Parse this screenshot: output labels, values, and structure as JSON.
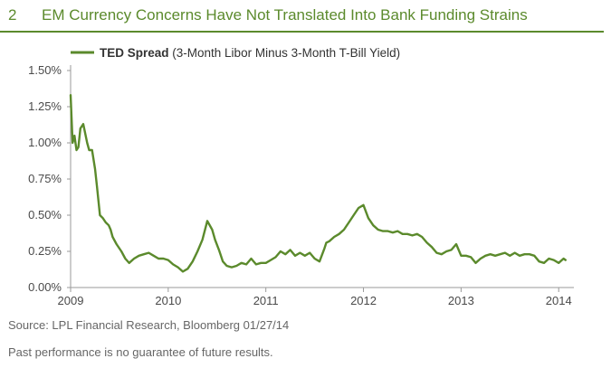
{
  "header": {
    "figure_number": "2",
    "title": "EM Currency Concerns Have Not Translated Into Bank Funding Strains"
  },
  "colors": {
    "series": "#5b8a2c",
    "axis": "#9a9a9a",
    "text": "#4a4a4a",
    "header": "#5b8a2c"
  },
  "chart_data": {
    "type": "line",
    "title": "",
    "xlabel": "",
    "ylabel": "",
    "x_ticks": [
      "2009",
      "2010",
      "2011",
      "2012",
      "2013",
      "2014"
    ],
    "x_tick_values": [
      2009,
      2010,
      2011,
      2012,
      2013,
      2014
    ],
    "y_ticks": [
      "0.00%",
      "0.25%",
      "0.50%",
      "0.75%",
      "1.00%",
      "1.25%",
      "1.50%"
    ],
    "y_tick_values": [
      0,
      0.25,
      0.5,
      0.75,
      1.0,
      1.25,
      1.5
    ],
    "xlim": [
      2009,
      2014.1
    ],
    "ylim": [
      0,
      1.5
    ],
    "grid": false,
    "legend": {
      "placement": "top-left",
      "bold_label": "TED Spread",
      "label": " (3-Month Libor Minus 3-Month T-Bill Yield)"
    },
    "series": [
      {
        "name": "TED Spread (3-Month Libor Minus 3-Month T-Bill Yield)",
        "x": [
          2009.0,
          2009.02,
          2009.04,
          2009.06,
          2009.08,
          2009.1,
          2009.13,
          2009.17,
          2009.19,
          2009.22,
          2009.25,
          2009.27,
          2009.3,
          2009.33,
          2009.36,
          2009.39,
          2009.41,
          2009.43,
          2009.47,
          2009.52,
          2009.56,
          2009.6,
          2009.65,
          2009.7,
          2009.75,
          2009.8,
          2009.85,
          2009.9,
          2009.95,
          2010.0,
          2010.05,
          2010.1,
          2010.15,
          2010.2,
          2010.25,
          2010.3,
          2010.35,
          2010.4,
          2010.45,
          2010.48,
          2010.52,
          2010.56,
          2010.6,
          2010.65,
          2010.7,
          2010.75,
          2010.8,
          2010.85,
          2010.9,
          2010.95,
          2011.0,
          2011.05,
          2011.1,
          2011.15,
          2011.2,
          2011.25,
          2011.3,
          2011.35,
          2011.4,
          2011.45,
          2011.5,
          2011.55,
          2011.6,
          2011.62,
          2011.65,
          2011.7,
          2011.75,
          2011.8,
          2011.85,
          2011.9,
          2011.95,
          2012.0,
          2012.05,
          2012.1,
          2012.15,
          2012.2,
          2012.25,
          2012.3,
          2012.35,
          2012.4,
          2012.45,
          2012.5,
          2012.55,
          2012.6,
          2012.65,
          2012.7,
          2012.75,
          2012.8,
          2012.85,
          2012.9,
          2012.95,
          2013.0,
          2013.05,
          2013.1,
          2013.15,
          2013.2,
          2013.25,
          2013.3,
          2013.35,
          2013.4,
          2013.45,
          2013.5,
          2013.55,
          2013.6,
          2013.65,
          2013.7,
          2013.75,
          2013.8,
          2013.85,
          2013.9,
          2013.95,
          2014.0,
          2014.05,
          2014.07
        ],
        "y": [
          1.33,
          1.0,
          1.05,
          0.95,
          0.97,
          1.1,
          1.13,
          1.0,
          0.95,
          0.95,
          0.82,
          0.7,
          0.5,
          0.48,
          0.45,
          0.43,
          0.4,
          0.35,
          0.3,
          0.25,
          0.2,
          0.17,
          0.2,
          0.22,
          0.23,
          0.24,
          0.22,
          0.2,
          0.2,
          0.19,
          0.16,
          0.14,
          0.11,
          0.13,
          0.18,
          0.25,
          0.33,
          0.46,
          0.4,
          0.33,
          0.26,
          0.18,
          0.15,
          0.14,
          0.15,
          0.17,
          0.16,
          0.2,
          0.16,
          0.17,
          0.17,
          0.19,
          0.21,
          0.25,
          0.23,
          0.26,
          0.22,
          0.24,
          0.22,
          0.24,
          0.2,
          0.18,
          0.27,
          0.31,
          0.32,
          0.35,
          0.37,
          0.4,
          0.45,
          0.5,
          0.55,
          0.57,
          0.48,
          0.43,
          0.4,
          0.39,
          0.39,
          0.38,
          0.39,
          0.37,
          0.37,
          0.36,
          0.37,
          0.35,
          0.31,
          0.28,
          0.24,
          0.23,
          0.25,
          0.26,
          0.3,
          0.22,
          0.22,
          0.21,
          0.17,
          0.2,
          0.22,
          0.23,
          0.22,
          0.23,
          0.24,
          0.22,
          0.24,
          0.22,
          0.23,
          0.23,
          0.22,
          0.18,
          0.17,
          0.2,
          0.19,
          0.17,
          0.2,
          0.19
        ]
      }
    ]
  },
  "footer": {
    "source": "Source: LPL Financial Research, Bloomberg   01/27/14",
    "disclaimer": "Past performance is no guarantee of future results."
  }
}
